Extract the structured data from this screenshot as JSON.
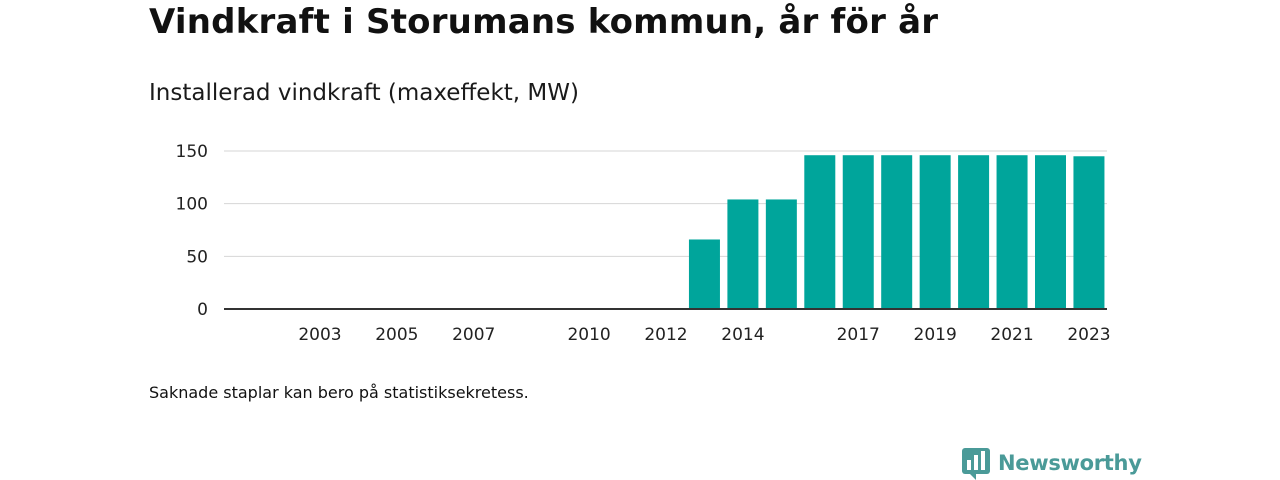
{
  "title": "Vindkraft i Storumans kommun, år för år",
  "subtitle": "Installerad vindkraft (maxeffekt, MW)",
  "note": "Saknade staplar kan bero på statistiksekretess.",
  "brand": {
    "name": "Newsworthy",
    "icon": "newsworthy-logo-icon",
    "color": "#4a9a98"
  },
  "chart_data": {
    "type": "bar",
    "categories": [
      2002,
      2003,
      2004,
      2005,
      2006,
      2007,
      2008,
      2009,
      2010,
      2011,
      2012,
      2013,
      2014,
      2015,
      2016,
      2017,
      2018,
      2019,
      2020,
      2021,
      2022,
      2023
    ],
    "values": [
      null,
      null,
      null,
      null,
      null,
      null,
      null,
      null,
      null,
      null,
      null,
      66,
      104,
      104,
      146,
      146,
      146,
      146,
      146,
      146,
      146,
      145
    ],
    "x_tick_labels": [
      "2003",
      "2005",
      "2007",
      "2010",
      "2012",
      "2014",
      "2017",
      "2019",
      "2021",
      "2023"
    ],
    "y_ticks": [
      0,
      50,
      100,
      150
    ],
    "ylim": [
      0,
      150
    ],
    "xlabel": "",
    "ylabel": "",
    "bar_color": "#00a59b",
    "grid": true
  }
}
